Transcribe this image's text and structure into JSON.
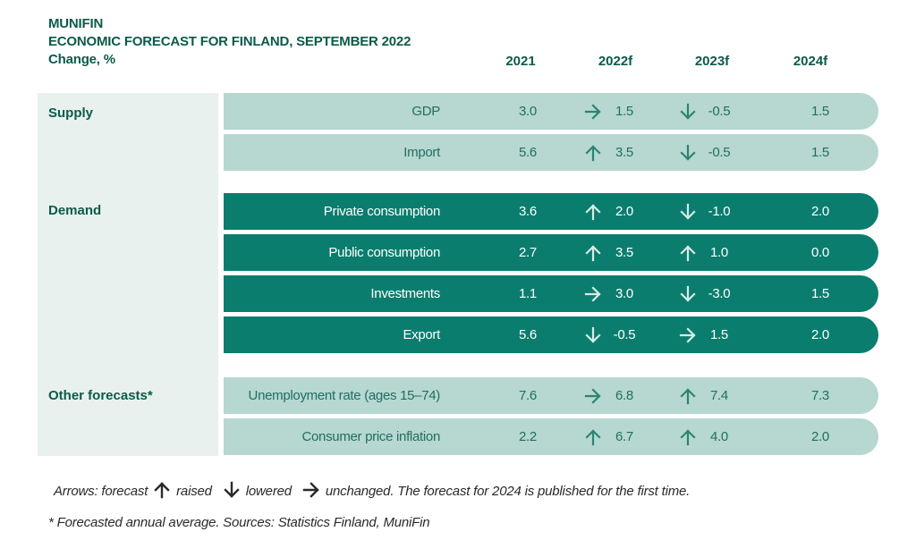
{
  "header": {
    "line1": "MUNIFIN",
    "line2": "ECONOMIC FORECAST FOR FINLAND, SEPTEMBER 2022",
    "line3": "Change, %"
  },
  "columns": [
    "2021",
    "2022f",
    "2023f",
    "2024f"
  ],
  "groups": [
    "Supply",
    "Demand",
    "Other forecasts*"
  ],
  "chart_data": {
    "type": "table",
    "columns": [
      "2021",
      "2022f",
      "2023f",
      "2024f"
    ],
    "rows": [
      {
        "group": "Supply",
        "label": "GDP",
        "v2021": "3.0",
        "v2022": "1.5",
        "a2022": "unchanged",
        "v2023": "-0.5",
        "a2023": "lowered",
        "v2024": "1.5"
      },
      {
        "group": "Supply",
        "label": "Import",
        "v2021": "5.6",
        "v2022": "3.5",
        "a2022": "raised",
        "v2023": "-0.5",
        "a2023": "lowered",
        "v2024": "1.5"
      },
      {
        "group": "Demand",
        "label": "Private consumption",
        "v2021": "3.6",
        "v2022": "2.0",
        "a2022": "raised",
        "v2023": "-1.0",
        "a2023": "lowered",
        "v2024": "2.0"
      },
      {
        "group": "Demand",
        "label": "Public consumption",
        "v2021": "2.7",
        "v2022": "3.5",
        "a2022": "raised",
        "v2023": "1.0",
        "a2023": "raised",
        "v2024": "0.0"
      },
      {
        "group": "Demand",
        "label": "Investments",
        "v2021": "1.1",
        "v2022": "3.0",
        "a2022": "unchanged",
        "v2023": "-3.0",
        "a2023": "lowered",
        "v2024": "1.5"
      },
      {
        "group": "Demand",
        "label": "Export",
        "v2021": "5.6",
        "v2022": "-0.5",
        "a2022": "lowered",
        "v2023": "1.5",
        "a2023": "unchanged",
        "v2024": "2.0"
      },
      {
        "group": "Other forecasts*",
        "label": "Unemployment rate (ages 15–74)",
        "v2021": "7.6",
        "v2022": "6.8",
        "a2022": "unchanged",
        "v2023": "7.4",
        "a2023": "raised",
        "v2024": "7.3"
      },
      {
        "group": "Other forecasts*",
        "label": "Consumer price inflation",
        "v2021": "2.2",
        "v2022": "6.7",
        "a2022": "raised",
        "v2023": "4.0",
        "a2023": "raised",
        "v2024": "2.0"
      }
    ]
  },
  "legend": {
    "prefix": "Arrows: forecast",
    "raised": "raised",
    "lowered": "lowered",
    "unchanged": "unchanged. The forecast for 2024 is published for the first time."
  },
  "source": "* Forecasted annual average. Sources: Statistics Finland, MuniFin",
  "colors": {
    "light_row": "#b7d7d1",
    "dark_row": "#0b7d6e",
    "sidebar": "#e9f1ef",
    "heading": "#0c5a4b"
  }
}
